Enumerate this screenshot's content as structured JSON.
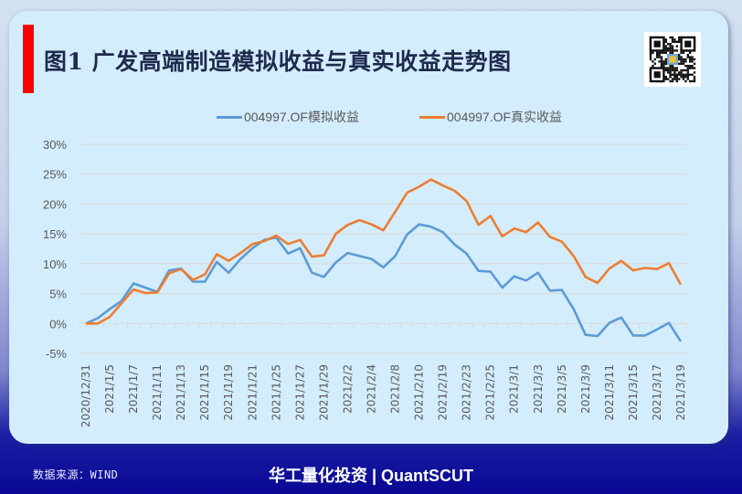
{
  "header": {
    "title": "图1 广发高端制造模拟收益与真实收益走势图"
  },
  "footer": {
    "source": "数据来源：WIND",
    "brand": "华工量化投资 | QuantSCUT"
  },
  "colors": {
    "simulated": "#5b9bd5",
    "real": "#ed7d31",
    "accent": "#ff0000"
  },
  "chart_data": {
    "type": "line",
    "title": "图1 广发高端制造模拟收益与真实收益走势图",
    "xlabel": "",
    "ylabel": "",
    "ylim": [
      -5,
      30
    ],
    "yticks": [
      -5,
      0,
      5,
      10,
      15,
      20,
      25,
      30
    ],
    "ytick_labels": [
      "-5%",
      "0%",
      "5%",
      "10%",
      "15%",
      "20%",
      "25%",
      "30%"
    ],
    "grid": true,
    "legend_position": "top-center",
    "x": [
      "2020/12/31",
      "2021/1/4",
      "2021/1/5",
      "2021/1/6",
      "2021/1/7",
      "2021/1/8",
      "2021/1/11",
      "2021/1/12",
      "2021/1/13",
      "2021/1/14",
      "2021/1/15",
      "2021/1/18",
      "2021/1/19",
      "2021/1/20",
      "2021/1/21",
      "2021/1/22",
      "2021/1/25",
      "2021/1/26",
      "2021/1/27",
      "2021/1/28",
      "2021/1/29",
      "2021/2/1",
      "2021/2/2",
      "2021/2/3",
      "2021/2/4",
      "2021/2/5",
      "2021/2/8",
      "2021/2/9",
      "2021/2/10",
      "2021/2/18",
      "2021/2/19",
      "2021/2/22",
      "2021/2/23",
      "2021/2/24",
      "2021/2/25",
      "2021/2/26",
      "2021/3/1",
      "2021/3/2",
      "2021/3/3",
      "2021/3/4",
      "2021/3/5",
      "2021/3/8",
      "2021/3/9",
      "2021/3/10",
      "2021/3/11",
      "2021/3/12",
      "2021/3/15",
      "2021/3/16",
      "2021/3/17",
      "2021/3/18",
      "2021/3/19"
    ],
    "xtick_labels": [
      "2020/12/31",
      "2021/1/5",
      "2021/1/7",
      "2021/1/11",
      "2021/1/13",
      "2021/1/15",
      "2021/1/19",
      "2021/1/21",
      "2021/1/25",
      "2021/1/27",
      "2021/1/29",
      "2021/2/2",
      "2021/2/4",
      "2021/2/8",
      "2021/2/10",
      "2021/2/19",
      "2021/2/23",
      "2021/2/25",
      "2021/3/1",
      "2021/3/3",
      "2021/3/5",
      "2021/3/9",
      "2021/3/11",
      "2021/3/15",
      "2021/3/17",
      "2021/3/19"
    ],
    "series": [
      {
        "name": "004997.OF模拟收益",
        "color": "#5b9bd5",
        "values": [
          0,
          0.9,
          2.4,
          3.8,
          6.7,
          6.0,
          5.3,
          8.9,
          9.2,
          7.0,
          7.0,
          10.3,
          8.5,
          10.8,
          12.6,
          14.0,
          14.4,
          11.7,
          12.6,
          8.5,
          7.8,
          10.2,
          11.8,
          11.3,
          10.8,
          9.4,
          11.3,
          14.9,
          16.6,
          16.2,
          15.3,
          13.2,
          11.7,
          8.8,
          8.7,
          6.0,
          7.9,
          7.2,
          8.5,
          5.5,
          5.6,
          2.4,
          -1.9,
          -2.1,
          0.1,
          1.0,
          -2.0,
          -2.0,
          -1.0,
          0.1,
          -3.0
        ]
      },
      {
        "name": "004997.OF真实收益",
        "color": "#ed7d31",
        "values": [
          0,
          0,
          1.1,
          3.4,
          5.7,
          5.1,
          5.2,
          8.4,
          9.1,
          7.3,
          8.2,
          11.6,
          10.5,
          11.8,
          13.3,
          13.8,
          14.7,
          13.3,
          14.0,
          11.2,
          11.4,
          15.0,
          16.5,
          17.3,
          16.6,
          15.6,
          18.7,
          21.9,
          22.9,
          24.1,
          23.1,
          22.2,
          20.5,
          16.5,
          18.0,
          14.6,
          15.9,
          15.3,
          16.9,
          14.5,
          13.7,
          11.3,
          7.8,
          6.8,
          9.2,
          10.5,
          8.9,
          9.3,
          9.1,
          10.1,
          6.5
        ]
      }
    ]
  }
}
